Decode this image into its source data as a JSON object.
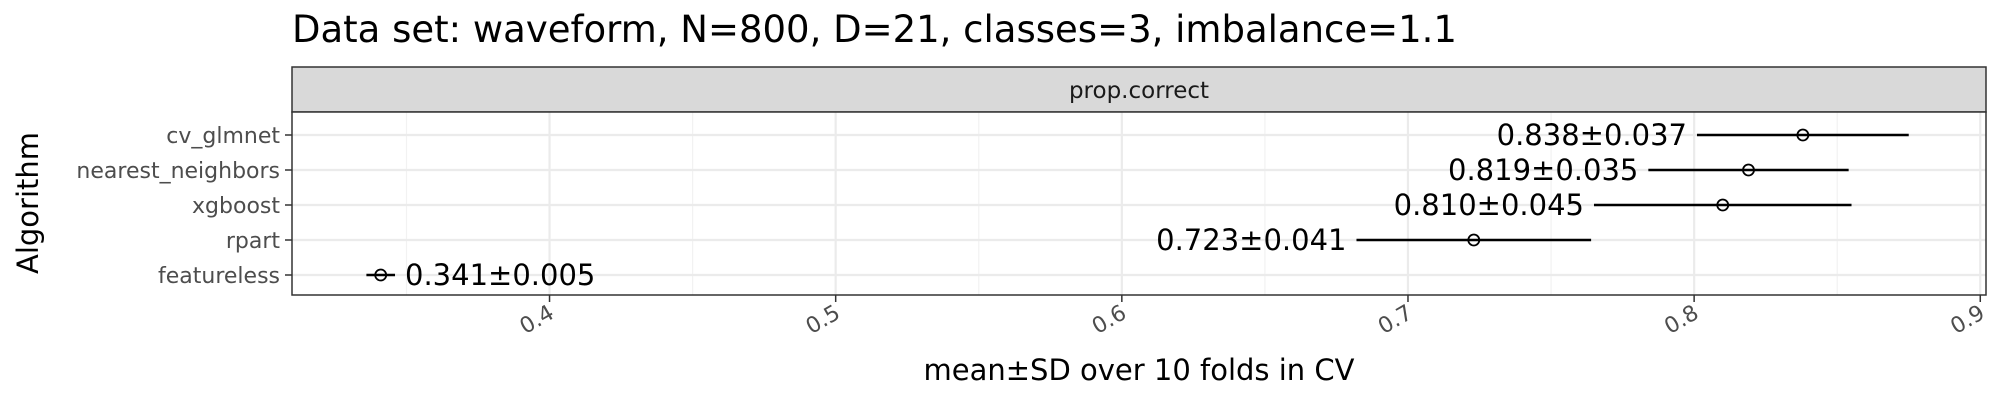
{
  "chart_data": {
    "type": "scatter",
    "title": "Data set: waveform, N=800, D=21, classes=3, imbalance=1.1",
    "facet_label": "prop.correct",
    "xlabel": "mean±SD over 10 folds in CV",
    "ylabel": "Algorithm",
    "xlim": [
      0.31,
      0.902
    ],
    "x_ticks": [
      0.4,
      0.5,
      0.6,
      0.7,
      0.8,
      0.9
    ],
    "x_tick_labels": [
      "0.4",
      "0.5",
      "0.6",
      "0.7",
      "0.8",
      "0.9"
    ],
    "grid": true,
    "categories": [
      "cv_glmnet",
      "nearest_neighbors",
      "xgboost",
      "rpart",
      "featureless"
    ],
    "points": [
      {
        "algorithm": "cv_glmnet",
        "mean": 0.838,
        "sd": 0.037,
        "label": "0.838±0.037"
      },
      {
        "algorithm": "nearest_neighbors",
        "mean": 0.819,
        "sd": 0.035,
        "label": "0.819±0.035"
      },
      {
        "algorithm": "xgboost",
        "mean": 0.81,
        "sd": 0.045,
        "label": "0.810±0.045"
      },
      {
        "algorithm": "rpart",
        "mean": 0.723,
        "sd": 0.041,
        "label": "0.723±0.041"
      },
      {
        "algorithm": "featureless",
        "mean": 0.341,
        "sd": 0.005,
        "label": "0.341±0.005"
      }
    ]
  }
}
